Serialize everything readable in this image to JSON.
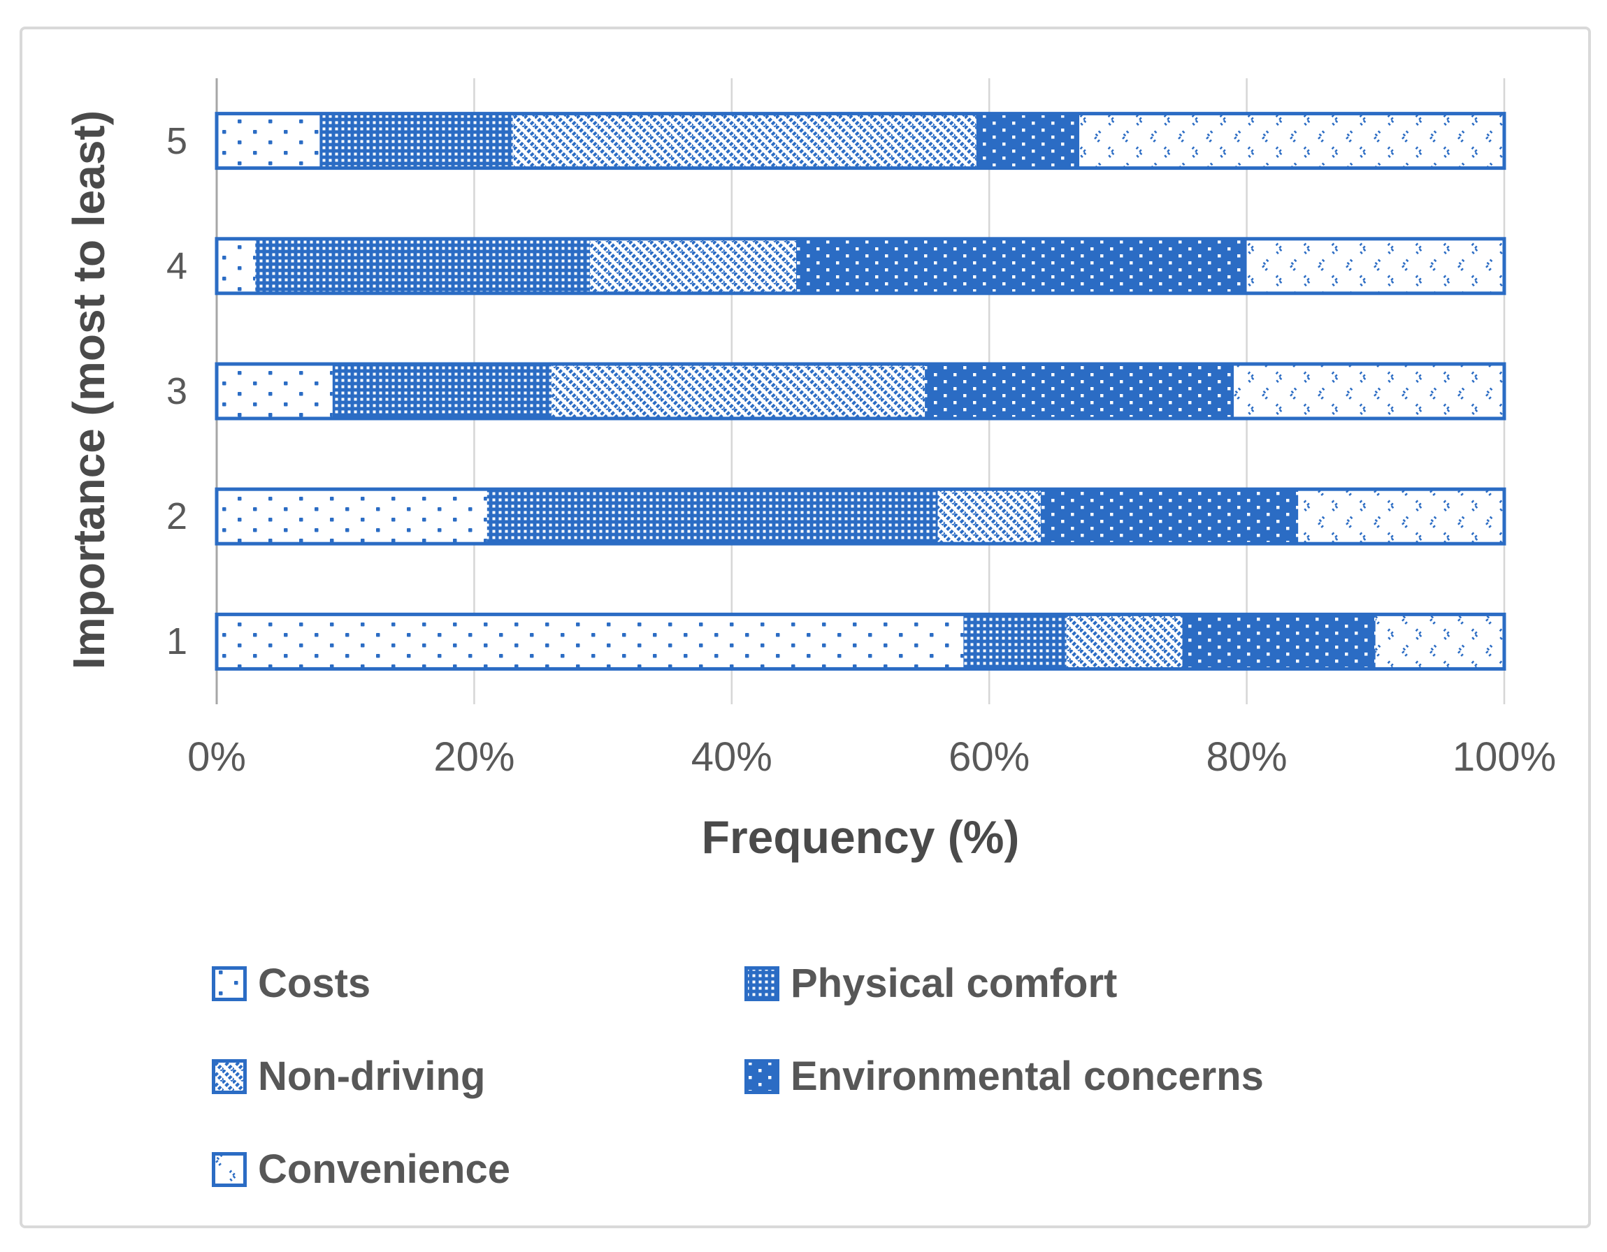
{
  "chart_data": {
    "type": "bar",
    "orientation": "horizontal",
    "stacked": true,
    "xlabel": "Frequency (%)",
    "ylabel": "Importance (most to least)",
    "categories": [
      "5",
      "4",
      "3",
      "2",
      "1"
    ],
    "x_ticks": [
      "0%",
      "20%",
      "40%",
      "60%",
      "80%",
      "100%"
    ],
    "xlim": [
      0,
      100
    ],
    "grid": "vertical",
    "legend_position": "bottom",
    "series": [
      {
        "name": "Costs",
        "pattern": "sparse-dots",
        "values": [
          8,
          3,
          9,
          21,
          58
        ]
      },
      {
        "name": "Physical comfort",
        "pattern": "mesh",
        "values": [
          15,
          26,
          17,
          35,
          8
        ]
      },
      {
        "name": "Non-driving",
        "pattern": "diagonal-stripes",
        "values": [
          36,
          16,
          29,
          8,
          9
        ]
      },
      {
        "name": "Environmental concerns",
        "pattern": "solid-white-dots",
        "values": [
          8,
          35,
          24,
          20,
          15
        ]
      },
      {
        "name": "Convenience",
        "pattern": "confetti-chevrons",
        "values": [
          33,
          20,
          21,
          16,
          10
        ]
      }
    ]
  },
  "legend": {
    "columns": 2,
    "items": [
      {
        "label": "Costs",
        "pattern": "sparse-dots"
      },
      {
        "label": "Physical comfort",
        "pattern": "mesh"
      },
      {
        "label": "Non-driving",
        "pattern": "diagonal-stripes"
      },
      {
        "label": "Environmental concerns",
        "pattern": "solid-white-dots"
      },
      {
        "label": "Convenience",
        "pattern": "confetti-chevrons"
      }
    ]
  },
  "colors": {
    "accent_blue": "#2b6cc4",
    "gridline": "#d6d6d6",
    "axis_line": "#a6a6a6",
    "tick_text": "#595959",
    "title_text": "#4a4a4a"
  }
}
